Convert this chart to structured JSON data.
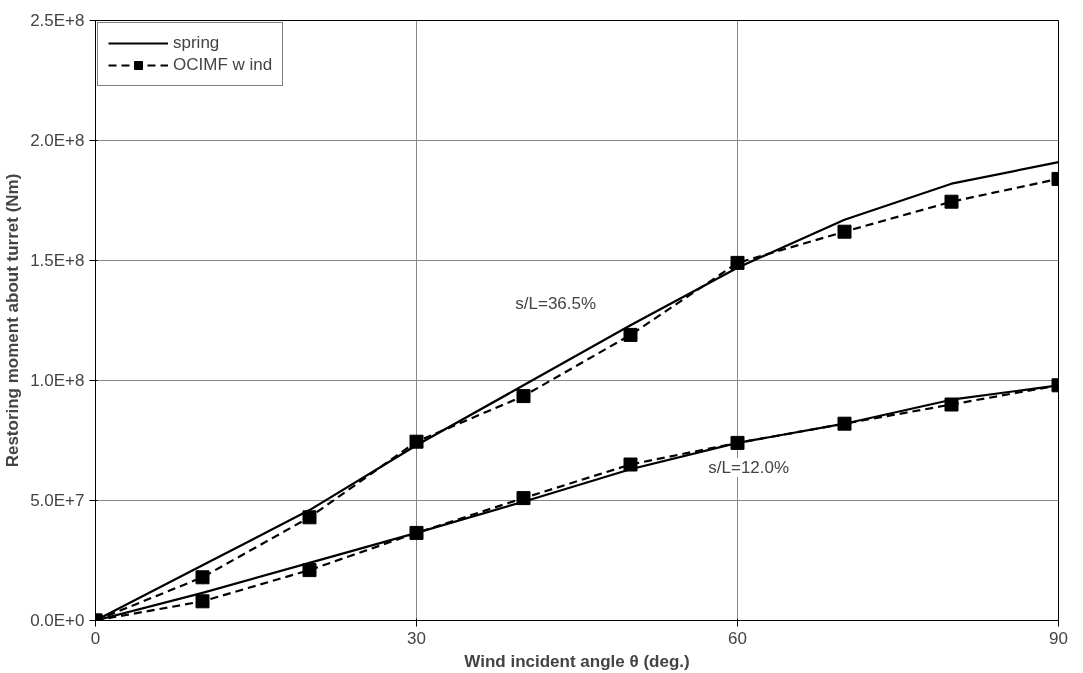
{
  "chart_data": {
    "type": "line",
    "xlabel": "Wind incident angle θ (deg.)",
    "ylabel": "Restoring moment about turret (Nm)",
    "x": [
      0,
      10,
      20,
      30,
      40,
      50,
      60,
      70,
      80,
      90
    ],
    "series": [
      {
        "name": "spring",
        "color": "#000000",
        "line_style": "solid",
        "marker": "none",
        "values": [
          0,
          23000000,
          46000000,
          73000000,
          98000000,
          123000000,
          147000000,
          167000000,
          182000000,
          191000000
        ]
      },
      {
        "name": "OCIMF w ind",
        "color": "#000000",
        "line_style": "dashed",
        "marker": "square",
        "values": [
          0,
          18000000,
          43000000,
          74500000,
          93500000,
          119000000,
          149000000,
          162000000,
          174500000,
          184000000
        ]
      },
      {
        "color": "#000000",
        "line_style": "solid",
        "marker": "none",
        "values": [
          0,
          11500000,
          24000000,
          36500000,
          49500000,
          63000000,
          74000000,
          82000000,
          92000000,
          98000000
        ]
      },
      {
        "color": "#000000",
        "line_style": "dashed",
        "marker": "square",
        "values": [
          0,
          8000000,
          21000000,
          36500000,
          51000000,
          65000000,
          74000000,
          82000000,
          90000000,
          98000000
        ]
      }
    ],
    "annotations": [
      "s/L=36.5%",
      "s/L=12.0%"
    ],
    "xlim": [
      0,
      90
    ],
    "xticks": [
      0,
      30,
      60,
      90
    ],
    "ylim": [
      0,
      250000000
    ],
    "yticks": [
      {
        "value": 0,
        "label": "0.0E+0"
      },
      {
        "value": 50000000,
        "label": "5.0E+7"
      },
      {
        "value": 100000000,
        "label": "1.0E+8"
      },
      {
        "value": 150000000,
        "label": "1.5E+8"
      },
      {
        "value": 200000000,
        "label": "2.0E+8"
      },
      {
        "value": 250000000,
        "label": "2.5E+8"
      }
    ],
    "grid": true,
    "legend": "top left"
  }
}
